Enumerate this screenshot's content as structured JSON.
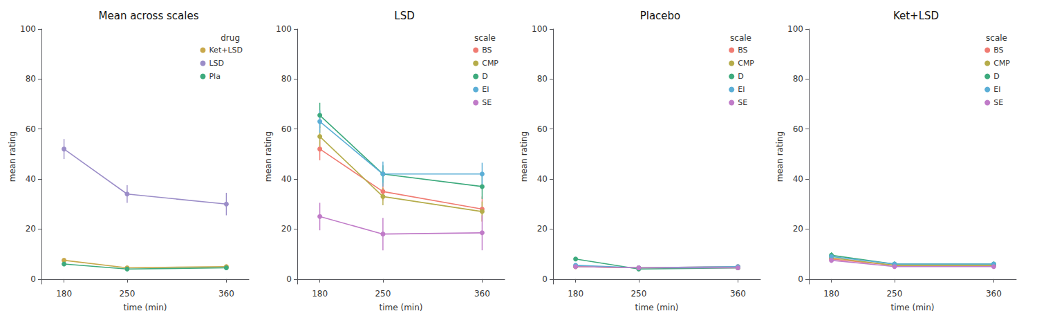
{
  "chart_data": [
    {
      "type": "line",
      "title": "Mean across scales",
      "legend_title": "drug",
      "xlabel": "time (min)",
      "ylabel": "mean rating",
      "x": [
        180,
        250,
        360
      ],
      "xlim": [
        155,
        385
      ],
      "xticks": [
        180,
        250,
        360
      ],
      "ylim": [
        -2,
        100
      ],
      "yticks": [
        0,
        20,
        40,
        60,
        80,
        100
      ],
      "grid": false,
      "legend": "upper right",
      "series": [
        {
          "name": "Ket+LSD",
          "color": "#C8A84B",
          "values": [
            7.5,
            4.5,
            5.0
          ],
          "errors": [
            0.5,
            0.4,
            0.4
          ]
        },
        {
          "name": "LSD",
          "color": "#9B8DC8",
          "values": [
            52.0,
            34.0,
            30.0
          ],
          "errors": [
            4.0,
            3.5,
            4.5
          ]
        },
        {
          "name": "Pla",
          "color": "#3DAA7D",
          "values": [
            6.0,
            4.0,
            4.5
          ],
          "errors": [
            0.4,
            0.3,
            0.3
          ]
        }
      ]
    },
    {
      "type": "line",
      "title": "LSD",
      "legend_title": "scale",
      "xlabel": "time (min)",
      "ylabel": "mean rating",
      "x": [
        180,
        250,
        360
      ],
      "xlim": [
        155,
        385
      ],
      "xticks": [
        180,
        250,
        360
      ],
      "ylim": [
        -2,
        100
      ],
      "yticks": [
        0,
        20,
        40,
        60,
        80,
        100
      ],
      "grid": false,
      "legend": "upper right",
      "series": [
        {
          "name": "BS",
          "color": "#F07B72",
          "values": [
            52.0,
            35.0,
            28.0
          ],
          "errors": [
            4.5,
            3.5,
            5.0
          ]
        },
        {
          "name": "CMP",
          "color": "#B5AC4A",
          "values": [
            57.0,
            33.0,
            27.0
          ],
          "errors": [
            4.0,
            3.5,
            4.0
          ]
        },
        {
          "name": "D",
          "color": "#3DAA7D",
          "values": [
            65.5,
            42.0,
            37.0
          ],
          "errors": [
            5.0,
            3.5,
            5.0
          ]
        },
        {
          "name": "EI",
          "color": "#5BAED6",
          "values": [
            63.0,
            42.0,
            42.0
          ],
          "errors": [
            4.5,
            5.0,
            4.5
          ]
        },
        {
          "name": "SE",
          "color": "#C07BC8",
          "values": [
            25.0,
            18.0,
            18.5
          ],
          "errors": [
            5.5,
            6.5,
            7.0
          ]
        }
      ]
    },
    {
      "type": "line",
      "title": "Placebo",
      "legend_title": "scale",
      "xlabel": "time (min)",
      "ylabel": "mean rating",
      "x": [
        180,
        250,
        360
      ],
      "xlim": [
        155,
        385
      ],
      "xticks": [
        180,
        250,
        360
      ],
      "ylim": [
        -2,
        100
      ],
      "yticks": [
        0,
        20,
        40,
        60,
        80,
        100
      ],
      "grid": false,
      "legend": "upper right",
      "series": [
        {
          "name": "BS",
          "color": "#F07B72",
          "values": [
            5.0,
            4.5,
            5.0
          ],
          "errors": [
            0.3,
            0.3,
            0.3
          ]
        },
        {
          "name": "CMP",
          "color": "#B5AC4A",
          "values": [
            5.0,
            4.5,
            4.5
          ],
          "errors": [
            0.3,
            0.3,
            0.3
          ]
        },
        {
          "name": "D",
          "color": "#3DAA7D",
          "values": [
            8.0,
            4.0,
            4.5
          ],
          "errors": [
            0.5,
            0.3,
            0.3
          ]
        },
        {
          "name": "EI",
          "color": "#5BAED6",
          "values": [
            5.5,
            4.5,
            5.0
          ],
          "errors": [
            0.3,
            0.3,
            0.3
          ]
        },
        {
          "name": "SE",
          "color": "#C07BC8",
          "values": [
            5.0,
            4.5,
            4.5
          ],
          "errors": [
            0.3,
            0.3,
            0.3
          ]
        }
      ]
    },
    {
      "type": "line",
      "title": "Ket+LSD",
      "legend_title": "scale",
      "xlabel": "time (min)",
      "ylabel": "mean rating",
      "x": [
        180,
        250,
        360
      ],
      "xlim": [
        155,
        385
      ],
      "xticks": [
        180,
        250,
        360
      ],
      "ylim": [
        -2,
        100
      ],
      "yticks": [
        0,
        20,
        40,
        60,
        80,
        100
      ],
      "grid": false,
      "legend": "upper right",
      "series": [
        {
          "name": "BS",
          "color": "#F07B72",
          "values": [
            8.0,
            5.5,
            5.5
          ],
          "errors": [
            1.0,
            0.8,
            0.8
          ]
        },
        {
          "name": "CMP",
          "color": "#B5AC4A",
          "values": [
            8.5,
            5.5,
            5.5
          ],
          "errors": [
            1.0,
            0.8,
            0.8
          ]
        },
        {
          "name": "D",
          "color": "#3DAA7D",
          "values": [
            9.5,
            6.0,
            6.0
          ],
          "errors": [
            1.2,
            0.9,
            0.9
          ]
        },
        {
          "name": "EI",
          "color": "#5BAED6",
          "values": [
            9.0,
            6.0,
            6.0
          ],
          "errors": [
            1.1,
            0.9,
            0.9
          ]
        },
        {
          "name": "SE",
          "color": "#C07BC8",
          "values": [
            7.5,
            5.0,
            5.0
          ],
          "errors": [
            1.0,
            0.8,
            0.8
          ]
        }
      ]
    }
  ]
}
